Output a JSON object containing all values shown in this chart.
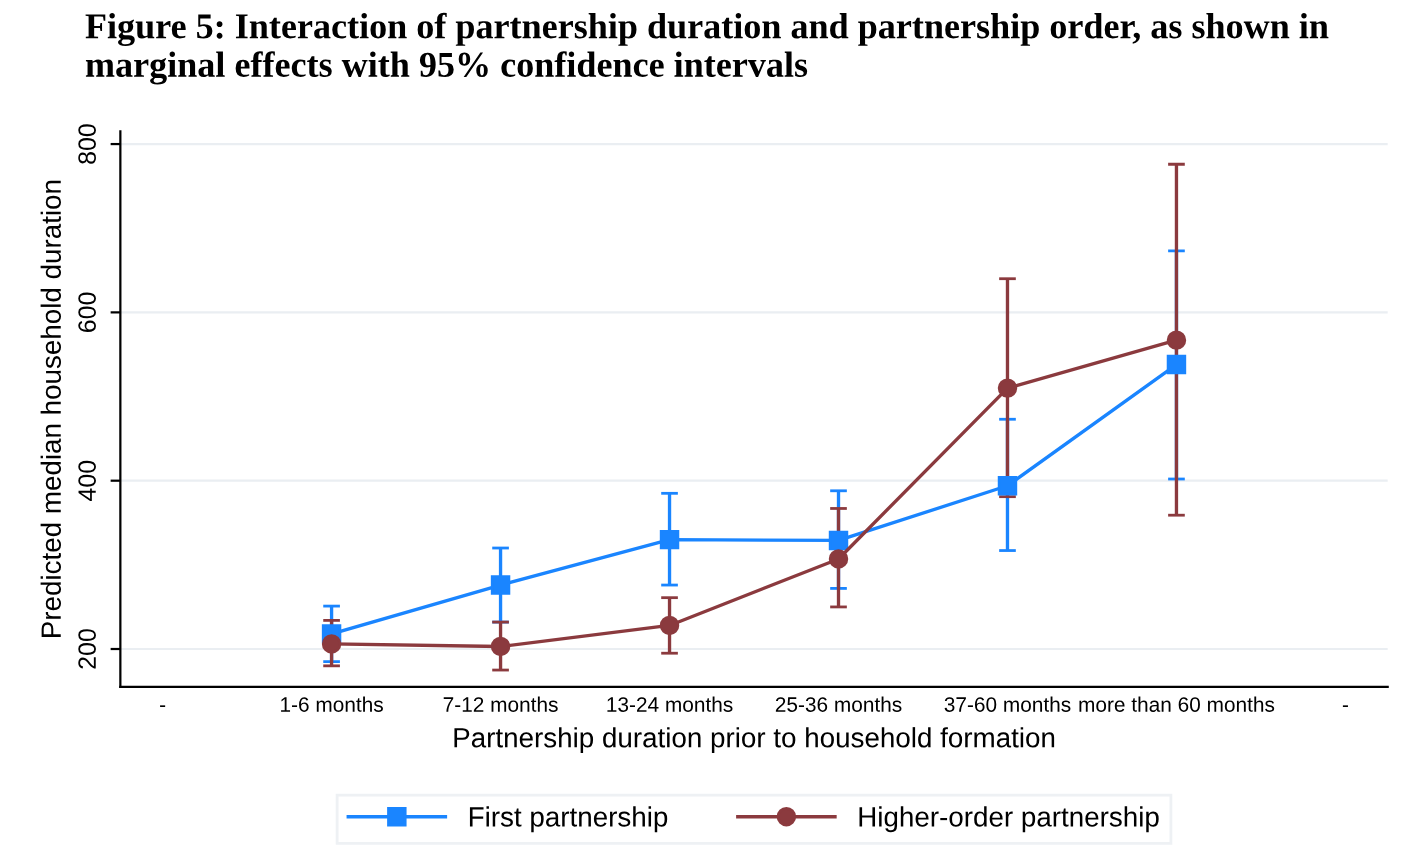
{
  "chart_data": {
    "type": "line",
    "title": "Figure 5: Interaction of partnership duration and partnership order, as shown in marginal effects with 95% confidence intervals",
    "xlabel": "Partnership duration prior to household formation",
    "ylabel": "Predicted median household duration",
    "categories": [
      "-",
      "1-6 months",
      "7-12 months",
      "13-24 months",
      "25-36 months",
      "37-60 months",
      "more than 60 months",
      "-"
    ],
    "series": [
      {
        "name": "First partnership",
        "color": "#1a85ff",
        "marker": "square",
        "values": [
          null,
          218,
          276,
          330,
          329,
          394,
          538,
          null
        ],
        "errors": [
          null,
          [
            185,
            251
          ],
          [
            232,
            320
          ],
          [
            276,
            385
          ],
          [
            272,
            388
          ],
          [
            317,
            473
          ],
          [
            402,
            673
          ],
          null
        ]
      },
      {
        "name": "Higher-order partnership",
        "color": "#8b3a3e",
        "marker": "circle",
        "values": [
          null,
          206,
          203,
          228,
          307,
          510,
          567,
          null
        ],
        "errors": [
          null,
          [
            180,
            234
          ],
          [
            175,
            232
          ],
          [
            195,
            261
          ],
          [
            250,
            367
          ],
          [
            381,
            640
          ],
          [
            359,
            776
          ],
          null
        ]
      }
    ],
    "ylim": [
      155,
      815
    ],
    "yticks": [
      200,
      400,
      600,
      800
    ],
    "grid": "y",
    "legend": "bottom"
  }
}
